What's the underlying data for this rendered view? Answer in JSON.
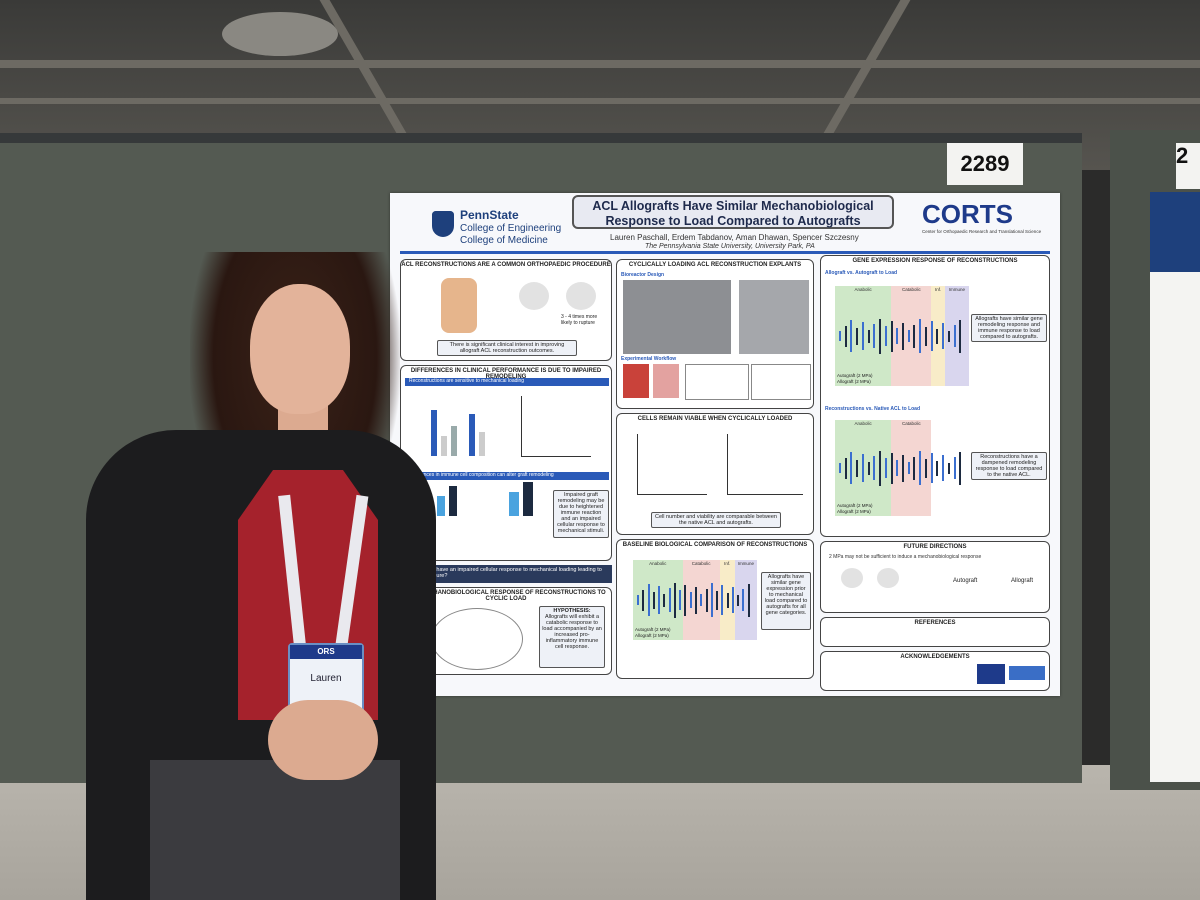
{
  "booth_number": "2289",
  "booth_number_next": "2",
  "poster": {
    "institution": [
      "PennState",
      "College of Engineering",
      "College of Medicine"
    ],
    "title": [
      "ACL Allografts Have Similar Mechanobiological",
      "Response to Load Compared to Autografts"
    ],
    "authors": "Lauren Paschall, Erdem Tabdanov, Aman Dhawan, Spencer Szczesny",
    "affiliation": "The Pennsylvania State University, University Park, PA",
    "logo_text": "CORTS",
    "logo_subtext": "Center for Orthopaedic Research and Translational Science",
    "sections": {
      "s1_title": "ACL RECONSTRUCTIONS ARE A COMMON ORTHOPAEDIC PROCEDURE",
      "s1_caption": "There is significant clinical interest in improving allograft ACL reconstruction outcomes.",
      "s1_stat": "3 - 4 times more likely to rupture",
      "s2_title": "DIFFERENCES IN CLINICAL PERFORMANCE IS DUE TO IMPAIRED REMODELING",
      "s2_sub1": "Reconstructions are sensitive to mechanical loading",
      "s2_sub2": "Differences in immune cell composition can alter graft remodeling",
      "s2_caption": "Impaired graft remodeling may be due to heightened immune reaction and an impaired cellular response to mechanical stimuli.",
      "question": "Do allografts have an impaired cellular response to mechanical loading leading to increased failure?",
      "s3_title": "THE MECHANOBIOLOGICAL RESPONSE OF RECONSTRUCTIONS TO CYCLIC LOAD",
      "hypothesis_title": "HYPOTHESIS:",
      "hypothesis": "Allografts will exhibit a catabolic response to load accompanied by an increased pro-inflammatory immune cell response.",
      "s4_title": "CYCLICALLY LOADING ACL RECONSTRUCTION EXPLANTS",
      "s4_sub1": "Bioreactor Design",
      "s4_sub2": "Experimental Workflow",
      "s5_title": "CELLS REMAIN VIABLE WHEN CYCLICALLY LOADED",
      "s5_caption": "Cell number and viability are comparable between the native ACL and autografts.",
      "s6_title": "BASELINE BIOLOGICAL COMPARISON OF RECONSTRUCTIONS",
      "s6_caption": "Allografts have similar gene expression prior to mechanical load compared to autografts for all gene categories.",
      "s7_title": "GENE EXPRESSION RESPONSE OF RECONSTRUCTIONS",
      "s7_sub1": "Allograft vs. Autograft to Load",
      "s7_caption1": "Allografts have similar gene remodeling response and immune response to load compared to autografts.",
      "s7_sub2": "Reconstructions vs. Native ACL to Load",
      "s7_caption2": "Reconstructions have a dampened remodeling response to load compared to the native ACL.",
      "s8_title": "FUTURE DIRECTIONS",
      "s8_note": "2 MPa may not be sufficient to induce a mechanobiological response",
      "s8_label1": "Autograft",
      "s8_label2": "Allograft",
      "s9_title": "REFERENCES",
      "s10_title": "ACKNOWLEDGEMENTS",
      "legend_auto": "Autograft (2 MPa)",
      "legend_allo": "Allograft (2 MPa)",
      "heat_labels": [
        "Anabolic",
        "Catabolic",
        "Inf.",
        "Immune"
      ]
    }
  },
  "badge": {
    "org": "ORS",
    "name": "Lauren"
  }
}
